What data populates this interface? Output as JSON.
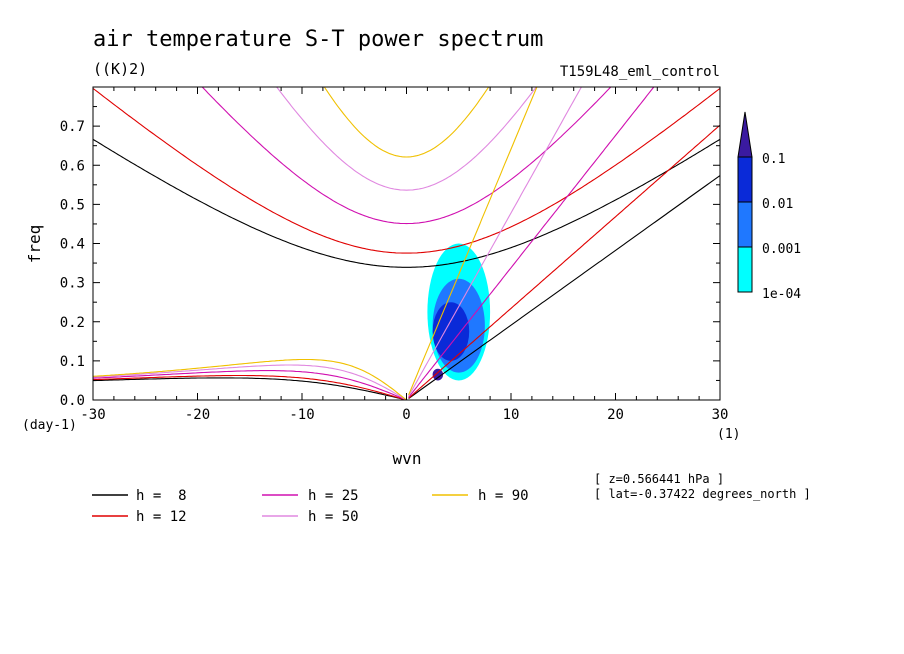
{
  "chart_data": {
    "type": "line",
    "title": "air temperature S-T power spectrum",
    "units": "((K)2)",
    "run_label": "T159L48_eml_control",
    "xlabel": "wvn",
    "ylabel": "freq",
    "x_unit": "(1)",
    "y_unit": "(day-1)",
    "xlim": [
      -30,
      30
    ],
    "ylim": [
      0,
      0.8
    ],
    "x_ticks": [
      -30,
      -20,
      -10,
      0,
      10,
      20,
      30
    ],
    "x_tick_labels": [
      "-30",
      "-20",
      "-10",
      "0",
      "10",
      "20",
      "30"
    ],
    "y_ticks": [
      0,
      0.1,
      0.2,
      0.3,
      0.4,
      0.5,
      0.6,
      0.7
    ],
    "y_tick_labels": [
      "0.0",
      "0.1",
      "0.2",
      "0.3",
      "0.4",
      "0.5",
      "0.6",
      "0.7"
    ],
    "annotations": [
      "[ z=0.566441 hPa ]",
      "[ lat=-0.37422 degrees_north ]"
    ],
    "colorbar": {
      "labels": [
        "0.1",
        "0.01",
        "0.001",
        "1e-04"
      ],
      "levels": [
        0.0001,
        0.001,
        0.01,
        0.1
      ],
      "colors": [
        "#00ffff",
        "#1f78ff",
        "#0a2ad8",
        "#3a1aa0"
      ]
    },
    "series": [
      {
        "name": "h =  8",
        "h": 8,
        "color": "#000000"
      },
      {
        "name": "h = 12",
        "h": 12,
        "color": "#e00000"
      },
      {
        "name": "h = 25",
        "h": 25,
        "color": "#d010b0"
      },
      {
        "name": "h = 50",
        "h": 50,
        "color": "#e088e0"
      },
      {
        "name": "h = 90",
        "h": 90,
        "color": "#f0c000"
      }
    ],
    "shading": [
      {
        "x": [
          2,
          8
        ],
        "y": [
          0.05,
          0.4
        ],
        "level": 0.0001
      },
      {
        "x": [
          2.5,
          7.5
        ],
        "y": [
          0.07,
          0.31
        ],
        "level": 0.001
      },
      {
        "x": [
          2.5,
          6
        ],
        "y": [
          0.1,
          0.25
        ],
        "level": 0.01
      },
      {
        "x": [
          2.5,
          3.5
        ],
        "y": [
          0.05,
          0.08
        ],
        "level": 0.1
      }
    ]
  }
}
